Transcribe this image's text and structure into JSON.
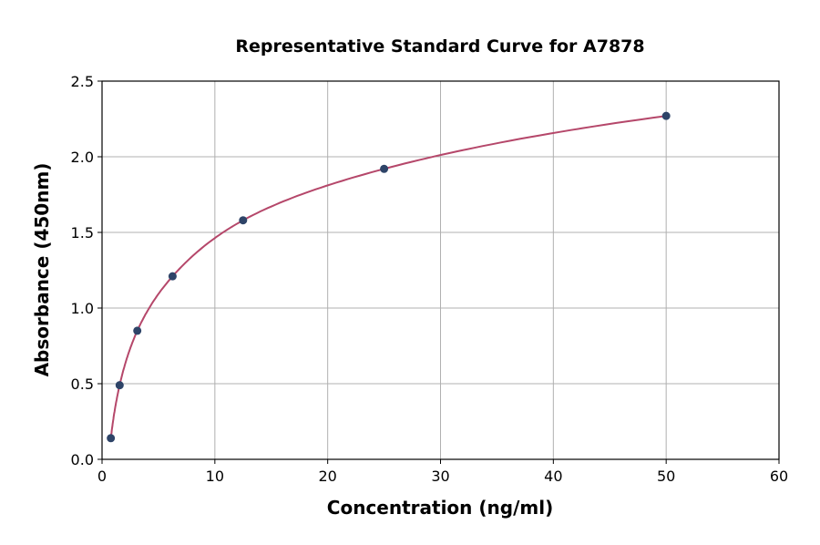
{
  "chart_data": {
    "type": "scatter",
    "title": "Representative Standard Curve for A7878",
    "xlabel": "Concentration (ng/ml)",
    "ylabel": "Absorbance (450nm)",
    "xlim": [
      0,
      60
    ],
    "ylim": [
      0,
      2.5
    ],
    "xticks": [
      0,
      10,
      20,
      30,
      40,
      50,
      60
    ],
    "yticks": [
      "0.0",
      "0.5",
      "1.0",
      "1.5",
      "2.0",
      "2.5"
    ],
    "grid": true,
    "series": [
      {
        "x": [
          0.78,
          1.56,
          3.125,
          6.25,
          12.5,
          25,
          50
        ],
        "y": [
          0.14,
          0.49,
          0.85,
          1.21,
          1.58,
          1.92,
          2.27
        ],
        "fit_curve": true
      }
    ],
    "colors": {
      "points": "#2e4468",
      "curve": "#b5476a",
      "grid": "#b0b0b0"
    }
  }
}
